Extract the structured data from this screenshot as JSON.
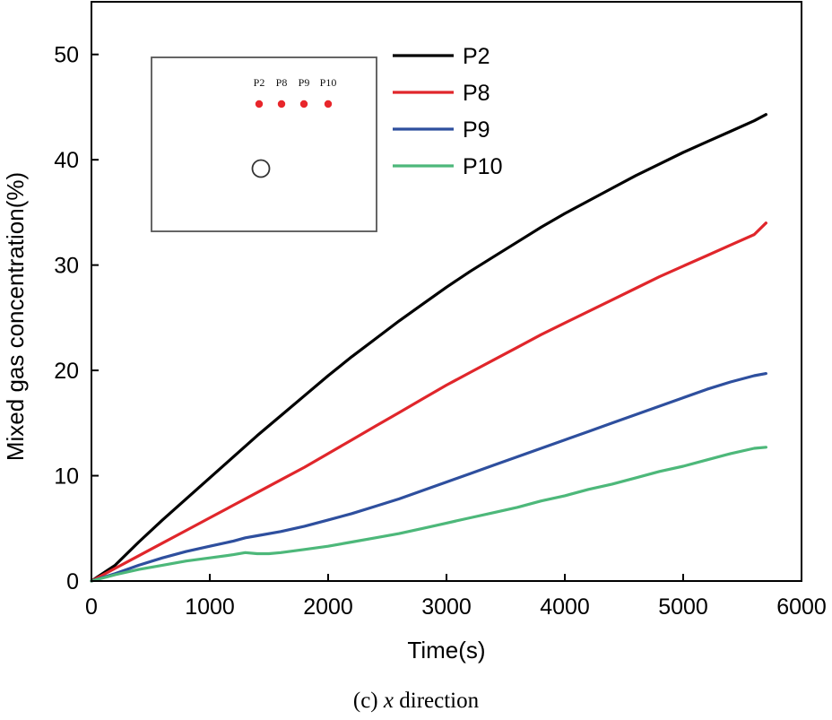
{
  "chart_data": {
    "type": "line",
    "title": "",
    "xlabel": "Time(s)",
    "ylabel": "Mixed gas concentration(%)",
    "xlim": [
      0,
      6000
    ],
    "ylim": [
      0,
      55
    ],
    "xticks": [
      0,
      1000,
      2000,
      3000,
      4000,
      5000,
      6000
    ],
    "yticks": [
      0,
      10,
      20,
      30,
      40,
      50
    ],
    "xtick_labels": [
      "0",
      "1000",
      "2000",
      "3000",
      "4000",
      "5000",
      "6000"
    ],
    "ytick_labels": [
      "0",
      "10",
      "20",
      "30",
      "40",
      "50"
    ],
    "legend_position": "top-right",
    "series": [
      {
        "name": "P2",
        "color": "#000000",
        "points": [
          [
            0,
            0
          ],
          [
            200,
            1.5
          ],
          [
            400,
            3.7
          ],
          [
            600,
            5.8
          ],
          [
            800,
            7.8
          ],
          [
            1000,
            9.8
          ],
          [
            1200,
            11.8
          ],
          [
            1400,
            13.8
          ],
          [
            1600,
            15.7
          ],
          [
            1800,
            17.6
          ],
          [
            2000,
            19.5
          ],
          [
            2200,
            21.3
          ],
          [
            2400,
            23.0
          ],
          [
            2600,
            24.7
          ],
          [
            2800,
            26.3
          ],
          [
            3000,
            27.9
          ],
          [
            3200,
            29.4
          ],
          [
            3400,
            30.8
          ],
          [
            3600,
            32.2
          ],
          [
            3800,
            33.6
          ],
          [
            4000,
            34.9
          ],
          [
            4200,
            36.1
          ],
          [
            4400,
            37.3
          ],
          [
            4600,
            38.5
          ],
          [
            4800,
            39.6
          ],
          [
            5000,
            40.7
          ],
          [
            5200,
            41.7
          ],
          [
            5400,
            42.7
          ],
          [
            5600,
            43.7
          ],
          [
            5700,
            44.3
          ]
        ]
      },
      {
        "name": "P8",
        "color": "#e0262b",
        "points": [
          [
            0,
            0
          ],
          [
            200,
            1.2
          ],
          [
            400,
            2.4
          ],
          [
            600,
            3.6
          ],
          [
            800,
            4.8
          ],
          [
            1000,
            6.0
          ],
          [
            1200,
            7.2
          ],
          [
            1400,
            8.4
          ],
          [
            1600,
            9.6
          ],
          [
            1800,
            10.8
          ],
          [
            2000,
            12.1
          ],
          [
            2200,
            13.4
          ],
          [
            2400,
            14.7
          ],
          [
            2600,
            16.0
          ],
          [
            2800,
            17.3
          ],
          [
            3000,
            18.6
          ],
          [
            3200,
            19.8
          ],
          [
            3400,
            21.0
          ],
          [
            3600,
            22.2
          ],
          [
            3800,
            23.4
          ],
          [
            4000,
            24.5
          ],
          [
            4200,
            25.6
          ],
          [
            4400,
            26.7
          ],
          [
            4600,
            27.8
          ],
          [
            4800,
            28.9
          ],
          [
            5000,
            29.9
          ],
          [
            5200,
            30.9
          ],
          [
            5400,
            31.9
          ],
          [
            5600,
            32.9
          ],
          [
            5700,
            34.0
          ]
        ]
      },
      {
        "name": "P9",
        "color": "#2e4f9e",
        "points": [
          [
            0,
            0
          ],
          [
            200,
            0.7
          ],
          [
            400,
            1.5
          ],
          [
            600,
            2.2
          ],
          [
            800,
            2.8
          ],
          [
            1000,
            3.3
          ],
          [
            1200,
            3.8
          ],
          [
            1300,
            4.1
          ],
          [
            1400,
            4.3
          ],
          [
            1600,
            4.7
          ],
          [
            1800,
            5.2
          ],
          [
            2000,
            5.8
          ],
          [
            2200,
            6.4
          ],
          [
            2400,
            7.1
          ],
          [
            2600,
            7.8
          ],
          [
            2800,
            8.6
          ],
          [
            3000,
            9.4
          ],
          [
            3200,
            10.2
          ],
          [
            3400,
            11.0
          ],
          [
            3600,
            11.8
          ],
          [
            3800,
            12.6
          ],
          [
            4000,
            13.4
          ],
          [
            4200,
            14.2
          ],
          [
            4400,
            15.0
          ],
          [
            4600,
            15.8
          ],
          [
            4800,
            16.6
          ],
          [
            5000,
            17.4
          ],
          [
            5200,
            18.2
          ],
          [
            5400,
            18.9
          ],
          [
            5600,
            19.5
          ],
          [
            5700,
            19.7
          ]
        ]
      },
      {
        "name": "P10",
        "color": "#4db87a",
        "points": [
          [
            0,
            0
          ],
          [
            200,
            0.6
          ],
          [
            400,
            1.1
          ],
          [
            600,
            1.5
          ],
          [
            800,
            1.9
          ],
          [
            1000,
            2.2
          ],
          [
            1200,
            2.5
          ],
          [
            1300,
            2.7
          ],
          [
            1400,
            2.6
          ],
          [
            1500,
            2.6
          ],
          [
            1600,
            2.7
          ],
          [
            1800,
            3.0
          ],
          [
            2000,
            3.3
          ],
          [
            2200,
            3.7
          ],
          [
            2400,
            4.1
          ],
          [
            2600,
            4.5
          ],
          [
            2800,
            5.0
          ],
          [
            3000,
            5.5
          ],
          [
            3200,
            6.0
          ],
          [
            3400,
            6.5
          ],
          [
            3600,
            7.0
          ],
          [
            3800,
            7.6
          ],
          [
            4000,
            8.1
          ],
          [
            4200,
            8.7
          ],
          [
            4400,
            9.2
          ],
          [
            4600,
            9.8
          ],
          [
            4800,
            10.4
          ],
          [
            5000,
            10.9
          ],
          [
            5200,
            11.5
          ],
          [
            5400,
            12.1
          ],
          [
            5600,
            12.6
          ],
          [
            5700,
            12.7
          ]
        ]
      }
    ],
    "inset": {
      "sensor_labels": [
        "P2",
        "P8",
        "P9",
        "P10"
      ],
      "sensor_color": "#e8262b"
    },
    "caption": {
      "prefix": "(c) ",
      "italic": "x",
      "suffix": " direction"
    }
  }
}
